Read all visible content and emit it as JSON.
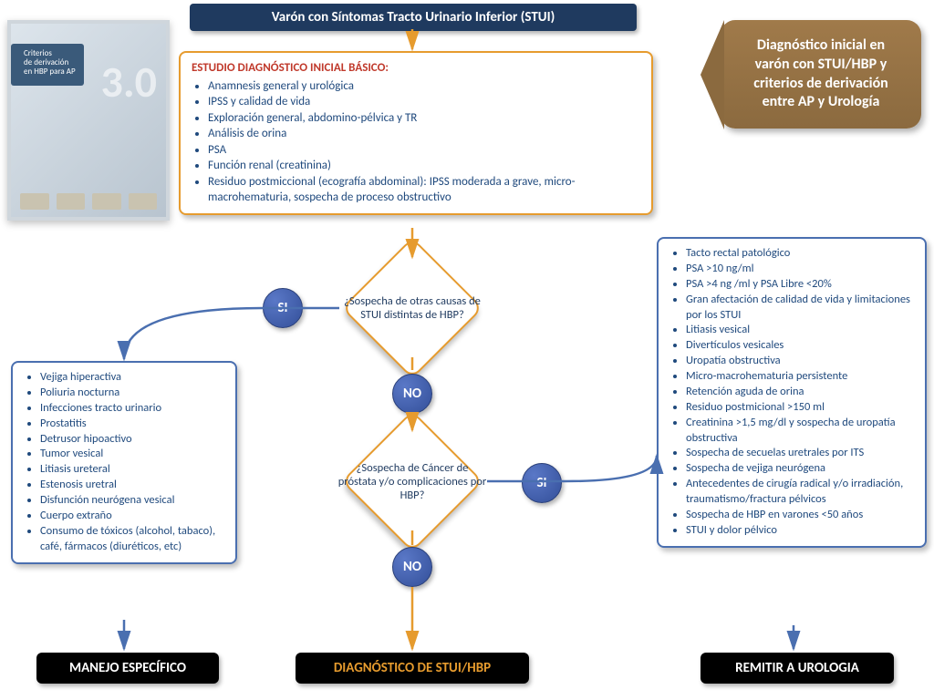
{
  "colors": {
    "navy": "#1f3a5f",
    "orange": "#e69b2e",
    "blue_border": "#4a6fb0",
    "circle_fill": "#3e5aa8",
    "arrow_orange": "#e69b2e",
    "arrow_blue": "#4a6fb0",
    "brown": "#8b6a3f",
    "black": "#000000",
    "white": "#ffffff",
    "red_heading": "#c0392b",
    "text_blue": "#1f497d"
  },
  "title_tab": "Diagnóstico inicial en varón con STUI/HBP y criterios de derivación entre AP y Urología",
  "top_title": "Varón con Síntomas Tracto Urinario Inferior (STUI)",
  "study_box": {
    "heading": "ESTUDIO DIAGNÓSTICO INICIAL BÁSICO:",
    "items": [
      "Anamnesis general y urológica",
      "IPSS y calidad de vida",
      "Exploración general, abdomino-pélvica y TR",
      "Análisis de orina",
      "PSA",
      "Función renal (creatinina)",
      "Residuo postmiccional (ecografía abdominal): IPSS moderada a grave, micro-macrohematuria, sospecha de proceso obstructivo"
    ]
  },
  "decision1": "¿Sospecha de otras causas de STUI distintas de HBP?",
  "decision2": "¿Sospecha de Cáncer de próstata y/o complicaciones por HBP?",
  "labels": {
    "si": "SI",
    "no": "NO"
  },
  "left_box": {
    "items": [
      "Vejiga hiperactiva",
      "Poliuria nocturna",
      "Infecciones tracto urinario",
      "Prostatitis",
      "Detrusor hipoactivo",
      "Tumor vesical",
      "Litiasis ureteral",
      "Estenosis uretral",
      "Disfunción neurógena vesical",
      "Cuerpo extraño",
      "Consumo de tóxicos (alcohol, tabaco), café, fármacos (diuréticos, etc)"
    ]
  },
  "right_box": {
    "items": [
      "Tacto rectal patológico",
      "PSA >10 ng/ml",
      "PSA >4 ng /ml y PSA Libre <20%",
      "Gran afectación de calidad de vida y limitaciones por los STUI",
      "Litiasis vesical",
      "Divertículos vesicales",
      "Uropatía obstructiva",
      "Micro-macrohematuria persistente",
      "Retención aguda de orina",
      "Residuo postmicional >150 ml",
      "Creatinina >1,5 mg/dl y sospecha de uropatía obstructiva",
      "Sospecha de secuelas uretrales por ITS",
      "Sospecha de vejiga neurógena",
      "Antecedentes de cirugía radical y/o irradiación, traumatismo/fractura pélvicos",
      "Sospecha de HBP en varones <50 años",
      "STUI y dolor pélvico"
    ]
  },
  "end_left": "MANEJO ESPECÍFICO",
  "end_mid": "DIAGNÓSTICO DE STUI/HBP",
  "end_right": "REMITIR A UROLOGIA",
  "thumb": {
    "line1": "Criterios",
    "line2": "de derivación",
    "line3": "en HBP para AP",
    "big": "3.0"
  }
}
